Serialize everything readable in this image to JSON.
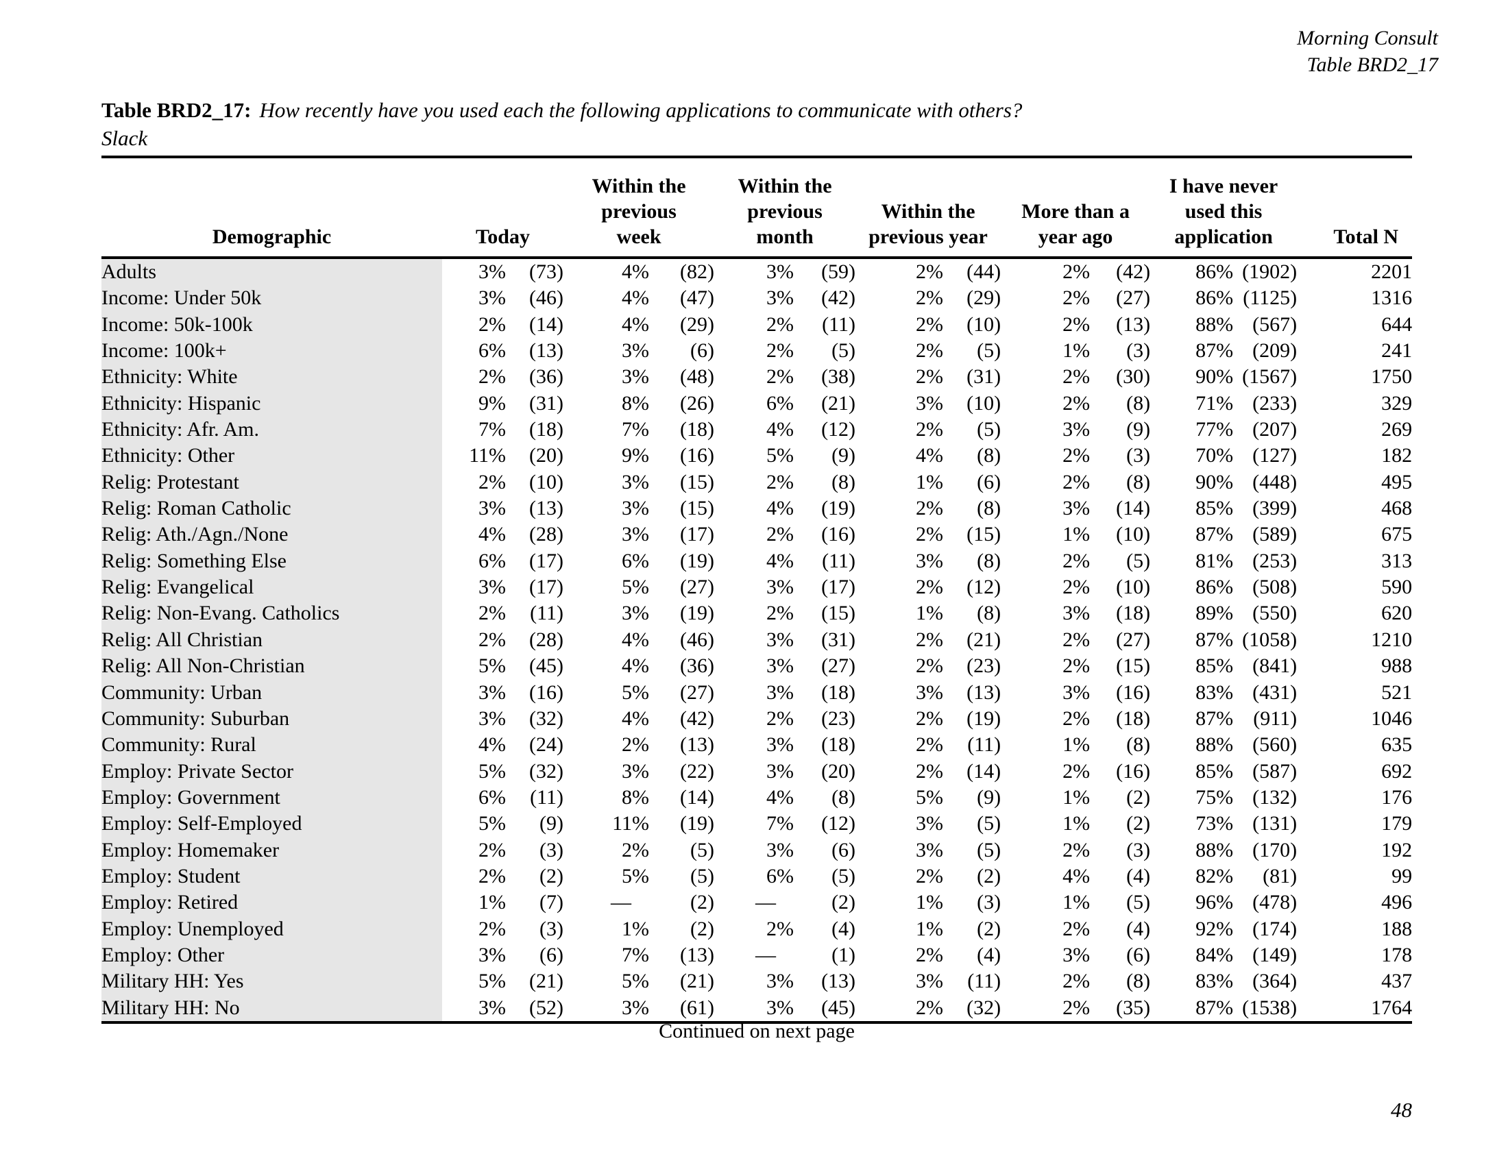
{
  "doc_header": {
    "source": "Morning Consult",
    "table_id": "Table BRD2_17"
  },
  "title": {
    "label": "Table BRD2_17:",
    "question": "How recently have you used each the following applications to communicate with others?",
    "subtitle": "Slack"
  },
  "table": {
    "demographic_header": "Demographic",
    "total_label": "Total N",
    "columns": [
      {
        "key": "today",
        "label": "Today",
        "label_lines": [
          "Today"
        ]
      },
      {
        "key": "previous-week",
        "label": "Within the previous week",
        "label_lines": [
          "Within the",
          "previous",
          "week"
        ]
      },
      {
        "key": "previous-month",
        "label": "Within the previous month",
        "label_lines": [
          "Within the",
          "previous",
          "month"
        ]
      },
      {
        "key": "previous-year",
        "label": "Within the previous year",
        "label_lines": [
          "Within the",
          "previous year"
        ]
      },
      {
        "key": "more-than-year-ago",
        "label": "More than a year ago",
        "label_lines": [
          "More than a",
          "year ago"
        ]
      },
      {
        "key": "never-used",
        "label": "I have never used this application",
        "label_lines": [
          "I have never",
          "used this",
          "application"
        ]
      }
    ],
    "rows": [
      {
        "demographic": "Adults",
        "cells": [
          [
            "3%",
            "(73)"
          ],
          [
            "4%",
            "(82)"
          ],
          [
            "3%",
            "(59)"
          ],
          [
            "2%",
            "(44)"
          ],
          [
            "2%",
            "(42)"
          ],
          [
            "86%",
            "(1902)"
          ]
        ],
        "total": "2201"
      },
      {
        "demographic": "Income: Under 50k",
        "cells": [
          [
            "3%",
            "(46)"
          ],
          [
            "4%",
            "(47)"
          ],
          [
            "3%",
            "(42)"
          ],
          [
            "2%",
            "(29)"
          ],
          [
            "2%",
            "(27)"
          ],
          [
            "86%",
            "(1125)"
          ]
        ],
        "total": "1316"
      },
      {
        "demographic": "Income: 50k-100k",
        "cells": [
          [
            "2%",
            "(14)"
          ],
          [
            "4%",
            "(29)"
          ],
          [
            "2%",
            "(11)"
          ],
          [
            "2%",
            "(10)"
          ],
          [
            "2%",
            "(13)"
          ],
          [
            "88%",
            "(567)"
          ]
        ],
        "total": "644"
      },
      {
        "demographic": "Income: 100k+",
        "cells": [
          [
            "6%",
            "(13)"
          ],
          [
            "3%",
            "(6)"
          ],
          [
            "2%",
            "(5)"
          ],
          [
            "2%",
            "(5)"
          ],
          [
            "1%",
            "(3)"
          ],
          [
            "87%",
            "(209)"
          ]
        ],
        "total": "241"
      },
      {
        "demographic": "Ethnicity: White",
        "cells": [
          [
            "2%",
            "(36)"
          ],
          [
            "3%",
            "(48)"
          ],
          [
            "2%",
            "(38)"
          ],
          [
            "2%",
            "(31)"
          ],
          [
            "2%",
            "(30)"
          ],
          [
            "90%",
            "(1567)"
          ]
        ],
        "total": "1750"
      },
      {
        "demographic": "Ethnicity: Hispanic",
        "cells": [
          [
            "9%",
            "(31)"
          ],
          [
            "8%",
            "(26)"
          ],
          [
            "6%",
            "(21)"
          ],
          [
            "3%",
            "(10)"
          ],
          [
            "2%",
            "(8)"
          ],
          [
            "71%",
            "(233)"
          ]
        ],
        "total": "329"
      },
      {
        "demographic": "Ethnicity: Afr. Am.",
        "cells": [
          [
            "7%",
            "(18)"
          ],
          [
            "7%",
            "(18)"
          ],
          [
            "4%",
            "(12)"
          ],
          [
            "2%",
            "(5)"
          ],
          [
            "3%",
            "(9)"
          ],
          [
            "77%",
            "(207)"
          ]
        ],
        "total": "269"
      },
      {
        "demographic": "Ethnicity: Other",
        "cells": [
          [
            "11%",
            "(20)"
          ],
          [
            "9%",
            "(16)"
          ],
          [
            "5%",
            "(9)"
          ],
          [
            "4%",
            "(8)"
          ],
          [
            "2%",
            "(3)"
          ],
          [
            "70%",
            "(127)"
          ]
        ],
        "total": "182"
      },
      {
        "demographic": "Relig: Protestant",
        "cells": [
          [
            "2%",
            "(10)"
          ],
          [
            "3%",
            "(15)"
          ],
          [
            "2%",
            "(8)"
          ],
          [
            "1%",
            "(6)"
          ],
          [
            "2%",
            "(8)"
          ],
          [
            "90%",
            "(448)"
          ]
        ],
        "total": "495"
      },
      {
        "demographic": "Relig: Roman Catholic",
        "cells": [
          [
            "3%",
            "(13)"
          ],
          [
            "3%",
            "(15)"
          ],
          [
            "4%",
            "(19)"
          ],
          [
            "2%",
            "(8)"
          ],
          [
            "3%",
            "(14)"
          ],
          [
            "85%",
            "(399)"
          ]
        ],
        "total": "468"
      },
      {
        "demographic": "Relig: Ath./Agn./None",
        "cells": [
          [
            "4%",
            "(28)"
          ],
          [
            "3%",
            "(17)"
          ],
          [
            "2%",
            "(16)"
          ],
          [
            "2%",
            "(15)"
          ],
          [
            "1%",
            "(10)"
          ],
          [
            "87%",
            "(589)"
          ]
        ],
        "total": "675"
      },
      {
        "demographic": "Relig: Something Else",
        "cells": [
          [
            "6%",
            "(17)"
          ],
          [
            "6%",
            "(19)"
          ],
          [
            "4%",
            "(11)"
          ],
          [
            "3%",
            "(8)"
          ],
          [
            "2%",
            "(5)"
          ],
          [
            "81%",
            "(253)"
          ]
        ],
        "total": "313"
      },
      {
        "demographic": "Relig: Evangelical",
        "cells": [
          [
            "3%",
            "(17)"
          ],
          [
            "5%",
            "(27)"
          ],
          [
            "3%",
            "(17)"
          ],
          [
            "2%",
            "(12)"
          ],
          [
            "2%",
            "(10)"
          ],
          [
            "86%",
            "(508)"
          ]
        ],
        "total": "590"
      },
      {
        "demographic": "Relig: Non-Evang. Catholics",
        "cells": [
          [
            "2%",
            "(11)"
          ],
          [
            "3%",
            "(19)"
          ],
          [
            "2%",
            "(15)"
          ],
          [
            "1%",
            "(8)"
          ],
          [
            "3%",
            "(18)"
          ],
          [
            "89%",
            "(550)"
          ]
        ],
        "total": "620"
      },
      {
        "demographic": "Relig: All Christian",
        "cells": [
          [
            "2%",
            "(28)"
          ],
          [
            "4%",
            "(46)"
          ],
          [
            "3%",
            "(31)"
          ],
          [
            "2%",
            "(21)"
          ],
          [
            "2%",
            "(27)"
          ],
          [
            "87%",
            "(1058)"
          ]
        ],
        "total": "1210"
      },
      {
        "demographic": "Relig: All Non-Christian",
        "cells": [
          [
            "5%",
            "(45)"
          ],
          [
            "4%",
            "(36)"
          ],
          [
            "3%",
            "(27)"
          ],
          [
            "2%",
            "(23)"
          ],
          [
            "2%",
            "(15)"
          ],
          [
            "85%",
            "(841)"
          ]
        ],
        "total": "988"
      },
      {
        "demographic": "Community: Urban",
        "cells": [
          [
            "3%",
            "(16)"
          ],
          [
            "5%",
            "(27)"
          ],
          [
            "3%",
            "(18)"
          ],
          [
            "3%",
            "(13)"
          ],
          [
            "3%",
            "(16)"
          ],
          [
            "83%",
            "(431)"
          ]
        ],
        "total": "521"
      },
      {
        "demographic": "Community: Suburban",
        "cells": [
          [
            "3%",
            "(32)"
          ],
          [
            "4%",
            "(42)"
          ],
          [
            "2%",
            "(23)"
          ],
          [
            "2%",
            "(19)"
          ],
          [
            "2%",
            "(18)"
          ],
          [
            "87%",
            "(911)"
          ]
        ],
        "total": "1046"
      },
      {
        "demographic": "Community: Rural",
        "cells": [
          [
            "4%",
            "(24)"
          ],
          [
            "2%",
            "(13)"
          ],
          [
            "3%",
            "(18)"
          ],
          [
            "2%",
            "(11)"
          ],
          [
            "1%",
            "(8)"
          ],
          [
            "88%",
            "(560)"
          ]
        ],
        "total": "635"
      },
      {
        "demographic": "Employ: Private Sector",
        "cells": [
          [
            "5%",
            "(32)"
          ],
          [
            "3%",
            "(22)"
          ],
          [
            "3%",
            "(20)"
          ],
          [
            "2%",
            "(14)"
          ],
          [
            "2%",
            "(16)"
          ],
          [
            "85%",
            "(587)"
          ]
        ],
        "total": "692"
      },
      {
        "demographic": "Employ: Government",
        "cells": [
          [
            "6%",
            "(11)"
          ],
          [
            "8%",
            "(14)"
          ],
          [
            "4%",
            "(8)"
          ],
          [
            "5%",
            "(9)"
          ],
          [
            "1%",
            "(2)"
          ],
          [
            "75%",
            "(132)"
          ]
        ],
        "total": "176"
      },
      {
        "demographic": "Employ: Self-Employed",
        "cells": [
          [
            "5%",
            "(9)"
          ],
          [
            "11%",
            "(19)"
          ],
          [
            "7%",
            "(12)"
          ],
          [
            "3%",
            "(5)"
          ],
          [
            "1%",
            "(2)"
          ],
          [
            "73%",
            "(131)"
          ]
        ],
        "total": "179"
      },
      {
        "demographic": "Employ: Homemaker",
        "cells": [
          [
            "2%",
            "(3)"
          ],
          [
            "2%",
            "(5)"
          ],
          [
            "3%",
            "(6)"
          ],
          [
            "3%",
            "(5)"
          ],
          [
            "2%",
            "(3)"
          ],
          [
            "88%",
            "(170)"
          ]
        ],
        "total": "192"
      },
      {
        "demographic": "Employ: Student",
        "cells": [
          [
            "2%",
            "(2)"
          ],
          [
            "5%",
            "(5)"
          ],
          [
            "6%",
            "(5)"
          ],
          [
            "2%",
            "(2)"
          ],
          [
            "4%",
            "(4)"
          ],
          [
            "82%",
            "(81)"
          ]
        ],
        "total": "99"
      },
      {
        "demographic": "Employ: Retired",
        "cells": [
          [
            "1%",
            "(7)"
          ],
          [
            "—",
            "(2)"
          ],
          [
            "—",
            "(2)"
          ],
          [
            "1%",
            "(3)"
          ],
          [
            "1%",
            "(5)"
          ],
          [
            "96%",
            "(478)"
          ]
        ],
        "total": "496"
      },
      {
        "demographic": "Employ: Unemployed",
        "cells": [
          [
            "2%",
            "(3)"
          ],
          [
            "1%",
            "(2)"
          ],
          [
            "2%",
            "(4)"
          ],
          [
            "1%",
            "(2)"
          ],
          [
            "2%",
            "(4)"
          ],
          [
            "92%",
            "(174)"
          ]
        ],
        "total": "188"
      },
      {
        "demographic": "Employ: Other",
        "cells": [
          [
            "3%",
            "(6)"
          ],
          [
            "7%",
            "(13)"
          ],
          [
            "—",
            "(1)"
          ],
          [
            "2%",
            "(4)"
          ],
          [
            "3%",
            "(6)"
          ],
          [
            "84%",
            "(149)"
          ]
        ],
        "total": "178"
      },
      {
        "demographic": "Military HH: Yes",
        "cells": [
          [
            "5%",
            "(21)"
          ],
          [
            "5%",
            "(21)"
          ],
          [
            "3%",
            "(13)"
          ],
          [
            "3%",
            "(11)"
          ],
          [
            "2%",
            "(8)"
          ],
          [
            "83%",
            "(364)"
          ]
        ],
        "total": "437"
      },
      {
        "demographic": "Military HH: No",
        "cells": [
          [
            "3%",
            "(52)"
          ],
          [
            "3%",
            "(61)"
          ],
          [
            "3%",
            "(45)"
          ],
          [
            "2%",
            "(32)"
          ],
          [
            "2%",
            "(35)"
          ],
          [
            "87%",
            "(1538)"
          ]
        ],
        "total": "1764"
      }
    ]
  },
  "footer": {
    "continued": "Continued on next page",
    "page_number": "48"
  }
}
